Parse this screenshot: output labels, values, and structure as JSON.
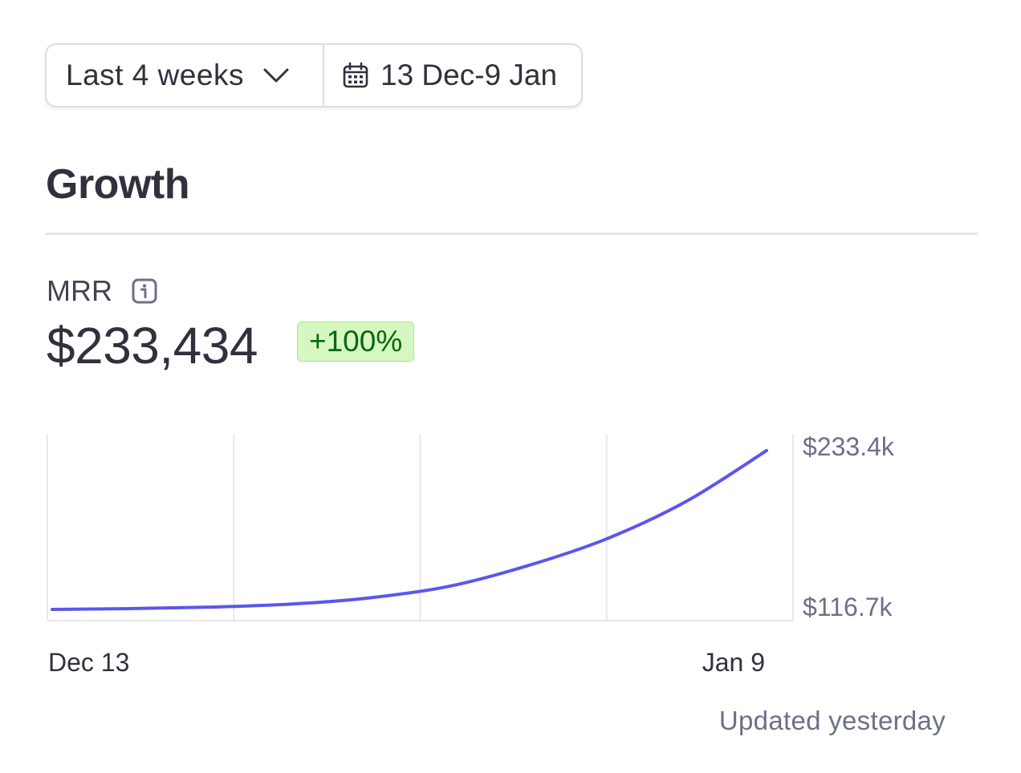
{
  "filters": {
    "range_label": "Last 4 weeks",
    "date_label": "13 Dec-9 Jan",
    "chevron_icon": "chevron-down-icon",
    "calendar_icon": "calendar-icon"
  },
  "section": {
    "title": "Growth"
  },
  "metric": {
    "label": "MRR",
    "info_icon": "info-icon",
    "value": "$233,434",
    "change": "+100%"
  },
  "colors": {
    "line": "#5b56ee",
    "badge_bg": "#d7f7c2",
    "badge_text": "#05690d",
    "grid": "#e8e8ec"
  },
  "chart_data": {
    "type": "line",
    "title": "",
    "xlabel": "",
    "ylabel": "",
    "x_tick_labels": [
      "Dec 13",
      "Jan 9"
    ],
    "y_tick_labels": [
      "$233.4k",
      "$116.7k"
    ],
    "ylim": [
      116700,
      233400
    ],
    "grid": true,
    "legend": "none",
    "series": [
      {
        "x": [
          "Dec 13",
          "Dec 16",
          "Dec 19",
          "Dec 22",
          "Dec 25",
          "Dec 28",
          "Dec 31",
          "Jan 3",
          "Jan 6",
          "Jan 9"
        ],
        "values": [
          116717,
          117300,
          118400,
          120600,
          125200,
          133700,
          149000,
          168900,
          196500,
          233434
        ]
      }
    ]
  },
  "footer": {
    "updated": "Updated yesterday"
  }
}
